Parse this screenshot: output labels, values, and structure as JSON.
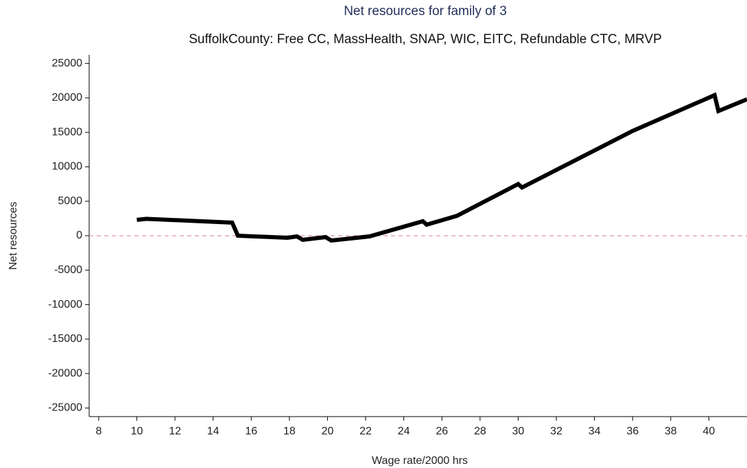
{
  "chart_data": {
    "type": "line",
    "title": "Net resources for family of 3",
    "subtitle": "SuffolkCounty: Free CC, MassHealth, SNAP, WIC, EITC, Refundable CTC, MRVP",
    "x_label": "Wage rate/2000 hrs",
    "y_label": "Net resources",
    "x": [
      10,
      10.5,
      15,
      15.3,
      17.9,
      18.4,
      18.7,
      19.9,
      20.2,
      22.2,
      25.0,
      25.2,
      26.8,
      30.0,
      30.2,
      36.0,
      40.3,
      40.5,
      42.0
    ],
    "series": [
      {
        "color": "#000000",
        "values": [
          2300,
          2450,
          1900,
          0,
          -300,
          -100,
          -600,
          -200,
          -700,
          -100,
          2100,
          1600,
          2900,
          7500,
          7000,
          15200,
          20400,
          18100,
          19800
        ]
      }
    ],
    "xlim": [
      7.5,
      42
    ],
    "ylim": [
      -26250,
      26250
    ],
    "xticks": [
      8,
      10,
      12,
      14,
      16,
      18,
      20,
      22,
      24,
      26,
      28,
      30,
      32,
      34,
      36,
      38,
      40
    ],
    "yticks": [
      -25000,
      -20000,
      -15000,
      -10000,
      -5000,
      0,
      5000,
      10000,
      15000,
      20000,
      25000
    ],
    "reference_line": {
      "value": 0,
      "color": "#e8a0b8"
    },
    "grid": false
  }
}
